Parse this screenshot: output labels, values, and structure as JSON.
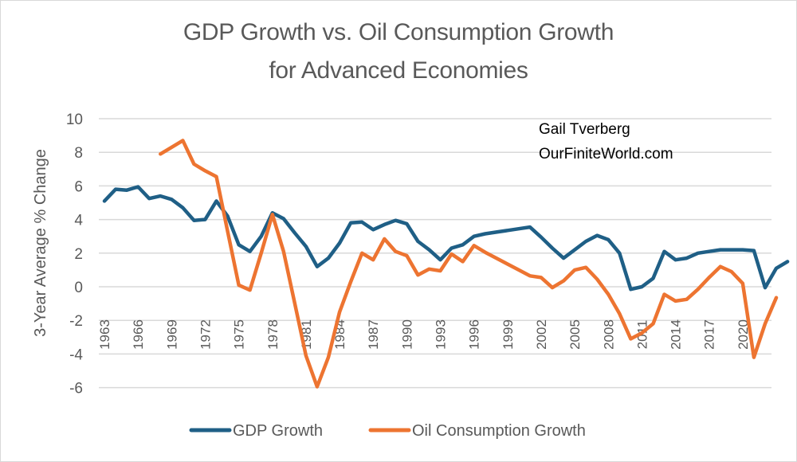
{
  "chart_data": {
    "type": "line",
    "title": "GDP Growth vs. Oil Consumption Growth",
    "subtitle": "for Advanced Economies",
    "xlabel": "",
    "ylabel": "3-Year Average % Change",
    "ylim": [
      -6,
      10
    ],
    "yticks": [
      10,
      8,
      6,
      4,
      2,
      0,
      -2,
      -4,
      -6
    ],
    "xlim": [
      1963,
      2022
    ],
    "xtick_labels": [
      "1963",
      "1966",
      "1969",
      "1972",
      "1975",
      "1978",
      "1981",
      "1984",
      "1987",
      "1990",
      "1993",
      "1996",
      "1999",
      "2002",
      "2005",
      "2008",
      "2011",
      "2014",
      "2017",
      "2020"
    ],
    "grid": true,
    "legend_position": "bottom",
    "annotations": [
      "Gail Tverberg",
      "OurFiniteWorld.com"
    ],
    "series": [
      {
        "name": "GDP Growth",
        "color": "#1f5f86",
        "x_start": 1963,
        "values": [
          5.1,
          5.8,
          5.75,
          5.95,
          5.25,
          5.4,
          5.2,
          4.7,
          3.95,
          4.0,
          5.1,
          4.2,
          2.5,
          2.1,
          3.0,
          4.4,
          4.05,
          3.2,
          2.4,
          1.2,
          1.7,
          2.6,
          3.8,
          3.85,
          3.4,
          3.7,
          3.95,
          3.75,
          2.7,
          2.2,
          1.6,
          2.3,
          2.5,
          3.0,
          3.15,
          3.25,
          3.35,
          3.45,
          3.55,
          2.95,
          2.3,
          1.7,
          2.2,
          2.7,
          3.05,
          2.8,
          2.0,
          -0.15,
          0.0,
          0.5,
          2.1,
          1.6,
          1.7,
          2.0,
          2.1,
          2.2,
          2.2,
          2.2,
          2.15,
          -0.05,
          1.1,
          1.5
        ]
      },
      {
        "name": "Oil Consumption Growth",
        "color": "#ed7431",
        "x_start": 1968,
        "values": [
          7.9,
          8.3,
          8.7,
          7.3,
          6.9,
          6.55,
          3.3,
          0.1,
          -0.2,
          2.0,
          4.3,
          2.1,
          -1.0,
          -4.1,
          -5.95,
          -4.2,
          -1.5,
          0.3,
          2.0,
          1.6,
          2.85,
          2.1,
          1.85,
          0.7,
          1.05,
          0.95,
          1.95,
          1.5,
          2.45,
          2.05,
          1.7,
          1.35,
          1.0,
          0.65,
          0.55,
          -0.05,
          0.35,
          1.0,
          1.15,
          0.45,
          -0.45,
          -1.6,
          -3.1,
          -2.75,
          -2.2,
          -0.45,
          -0.85,
          -0.75,
          -0.15,
          0.55,
          1.2,
          0.9,
          0.2,
          -4.2,
          -2.2,
          -0.65
        ]
      }
    ]
  }
}
